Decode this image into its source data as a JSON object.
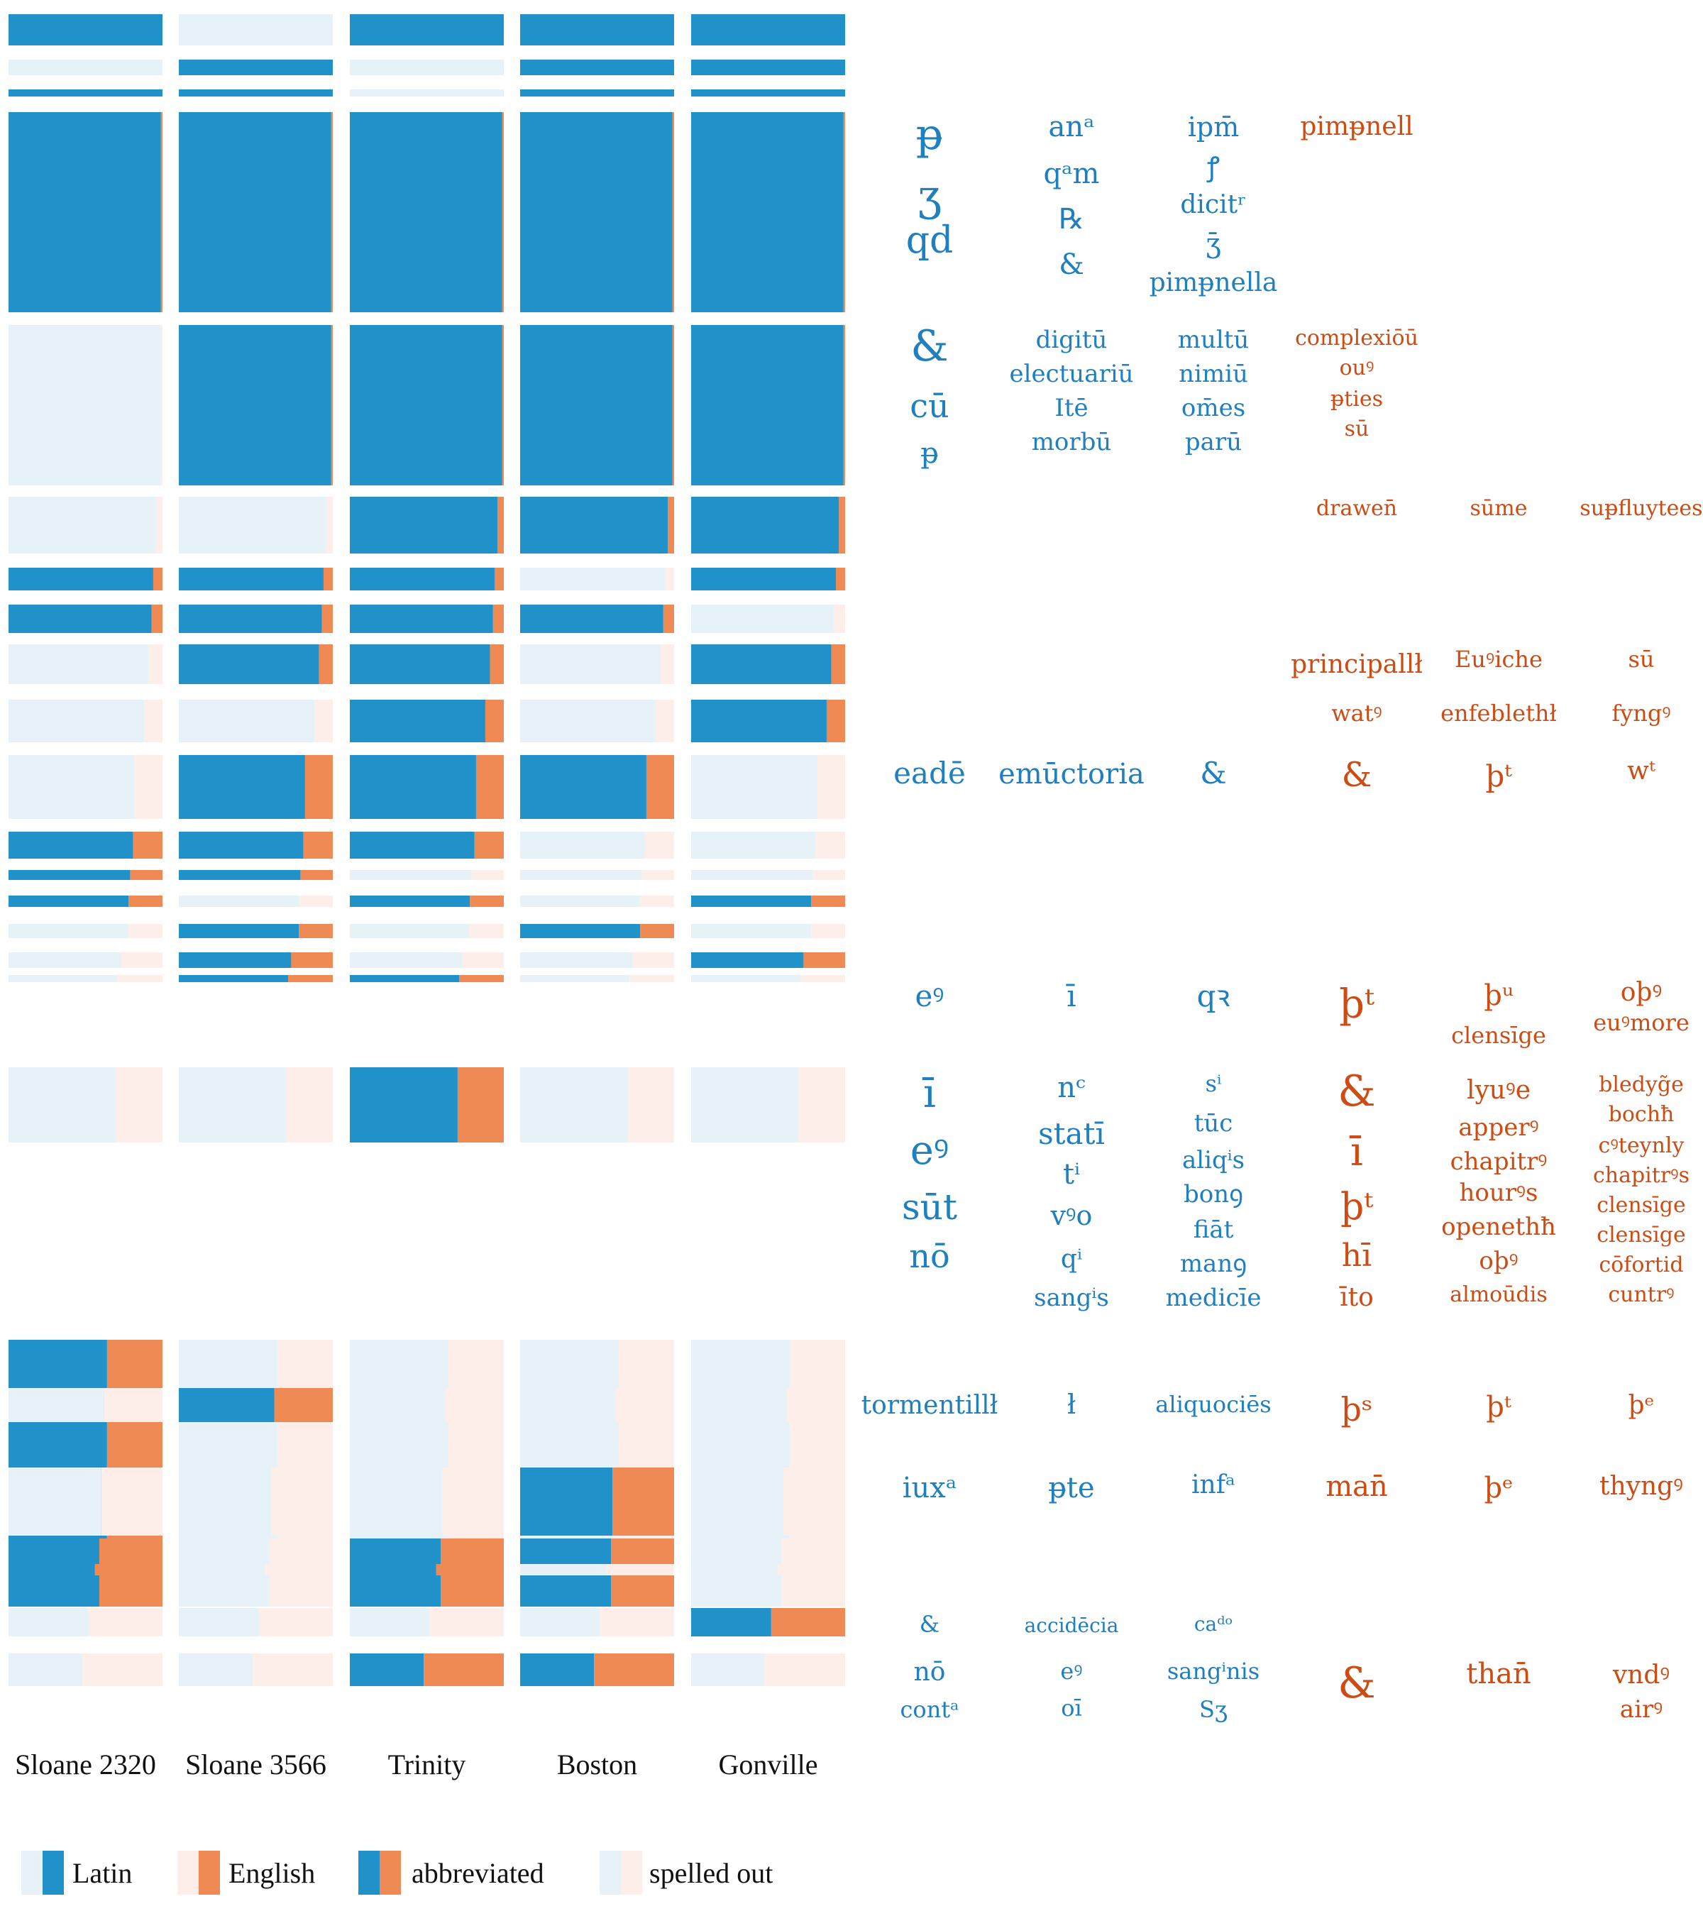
{
  "colors": {
    "latin_abbrev": "#2192c9",
    "english_abbrev": "#f08a54",
    "latin_spelled": "#e6f2f8",
    "english_spelled": "#fdeeea",
    "latin_text": "#1f7fbf",
    "english_text": "#cc4c14"
  },
  "chart_data": {
    "type": "heatmap",
    "columns": [
      "Sloane 2320",
      "Sloane 3566",
      "Trinity",
      "Boston",
      "Gonville"
    ],
    "rows": [
      {
        "latin": 1.0,
        "cells": [
          1,
          0,
          1,
          1,
          1
        ]
      },
      {
        "latin": 1.0,
        "cells": [
          0,
          1,
          0,
          1,
          1
        ]
      },
      {
        "latin": 1.0,
        "cells": [
          1,
          1,
          0,
          1,
          1
        ]
      },
      {
        "latin": 0.99,
        "cells": [
          1,
          1,
          1,
          1,
          1
        ]
      },
      {
        "latin": 0.99,
        "cells": [
          0,
          1,
          1,
          1,
          1
        ]
      },
      {
        "latin": 0.96,
        "cells": [
          0,
          0,
          1,
          1,
          1
        ]
      },
      {
        "latin": 0.94,
        "cells": [
          1,
          1,
          1,
          0,
          1
        ]
      },
      {
        "latin": 0.93,
        "cells": [
          1,
          1,
          1,
          1,
          0
        ]
      },
      {
        "latin": 0.91,
        "cells": [
          0,
          1,
          1,
          0,
          1
        ]
      },
      {
        "latin": 0.88,
        "cells": [
          0,
          0,
          1,
          0,
          1
        ]
      },
      {
        "latin": 0.82,
        "cells": [
          0,
          1,
          1,
          1,
          0
        ]
      },
      {
        "latin": 0.81,
        "cells": [
          1,
          1,
          1,
          0,
          0
        ]
      },
      {
        "latin": 0.79,
        "cells": [
          1,
          1,
          0,
          0,
          0
        ]
      },
      {
        "latin": 0.78,
        "cells": [
          1,
          0,
          1,
          0,
          1
        ]
      },
      {
        "latin": 0.78,
        "cells": [
          0,
          1,
          0,
          1,
          0
        ]
      },
      {
        "latin": 0.73,
        "cells": [
          0,
          1,
          0,
          0,
          1
        ]
      },
      {
        "latin": 0.71,
        "cells": [
          0,
          1,
          1,
          0,
          0
        ]
      },
      {
        "latin": 0.7,
        "cells": [
          0,
          0,
          1,
          0,
          0
        ]
      },
      {
        "latin": 0.64,
        "cells": [
          1,
          0,
          0,
          0,
          0
        ]
      },
      {
        "latin": 0.62,
        "cells": [
          0,
          1,
          0,
          0,
          0
        ]
      },
      {
        "latin": 0.6,
        "cells": [
          0,
          0,
          0,
          1,
          0
        ]
      },
      {
        "latin": 0.59,
        "cells": [
          1,
          0,
          1,
          1,
          0
        ]
      },
      {
        "latin": 0.56,
        "cells": [
          1,
          0,
          1,
          0,
          0
        ]
      },
      {
        "latin": 0.52,
        "cells": [
          0,
          0,
          0,
          0,
          1
        ]
      },
      {
        "latin": 0.48,
        "cells": [
          0,
          0,
          1,
          1,
          0
        ]
      }
    ]
  },
  "words": [
    {
      "lang": "latin",
      "size": 60,
      "text": "p̶"
    },
    {
      "lang": "latin",
      "size": 60,
      "text": "ʒ"
    },
    {
      "lang": "latin",
      "size": 52,
      "text": "qd"
    },
    {
      "lang": "latin",
      "size": 40,
      "text": "anᵃ"
    },
    {
      "lang": "latin",
      "size": 40,
      "text": "qᵃm"
    },
    {
      "lang": "latin",
      "size": 40,
      "text": "℞"
    },
    {
      "lang": "latin",
      "size": 40,
      "text": "&"
    },
    {
      "lang": "latin",
      "size": 38,
      "text": "ipm̄"
    },
    {
      "lang": "latin",
      "size": 38,
      "text": "ꝭ"
    },
    {
      "lang": "latin",
      "size": 36,
      "text": "dicitʳ"
    },
    {
      "lang": "latin",
      "size": 38,
      "text": "ʒ̄"
    },
    {
      "lang": "latin",
      "size": 36,
      "text": "pimp̶nella"
    },
    {
      "lang": "english",
      "size": 36,
      "text": "pimp̶nell"
    },
    {
      "lang": "latin",
      "size": 60,
      "text": "&"
    },
    {
      "lang": "latin",
      "size": 46,
      "text": "cū"
    },
    {
      "lang": "latin",
      "size": 40,
      "text": "p̶"
    },
    {
      "lang": "latin",
      "size": 34,
      "text": "digitū"
    },
    {
      "lang": "latin",
      "size": 34,
      "text": "electuariū"
    },
    {
      "lang": "latin",
      "size": 34,
      "text": "Itē"
    },
    {
      "lang": "latin",
      "size": 34,
      "text": "morbū"
    },
    {
      "lang": "latin",
      "size": 34,
      "text": "multū"
    },
    {
      "lang": "latin",
      "size": 34,
      "text": "nimiū"
    },
    {
      "lang": "latin",
      "size": 34,
      "text": "om̄es"
    },
    {
      "lang": "latin",
      "size": 34,
      "text": "parū"
    },
    {
      "lang": "english",
      "size": 30,
      "text": "complexiōū"
    },
    {
      "lang": "english",
      "size": 30,
      "text": "ouꝰ"
    },
    {
      "lang": "english",
      "size": 30,
      "text": "p̶ties"
    },
    {
      "lang": "english",
      "size": 30,
      "text": "sū"
    },
    {
      "lang": "english",
      "size": 30,
      "text": "drawen̄"
    },
    {
      "lang": "english",
      "size": 30,
      "text": "sūme"
    },
    {
      "lang": "english",
      "size": 30,
      "text": "sup̶fluytees"
    },
    {
      "lang": "english",
      "size": 36,
      "text": "principallł"
    },
    {
      "lang": "english",
      "size": 32,
      "text": "Euꝰiche"
    },
    {
      "lang": "english",
      "size": 32,
      "text": "sū"
    },
    {
      "lang": "english",
      "size": 32,
      "text": "watꝰ"
    },
    {
      "lang": "english",
      "size": 32,
      "text": "enfeblethł"
    },
    {
      "lang": "english",
      "size": 32,
      "text": "fyngꝰ"
    },
    {
      "lang": "latin",
      "size": 42,
      "text": "eadē"
    },
    {
      "lang": "latin",
      "size": 40,
      "text": "emūctoria"
    },
    {
      "lang": "latin",
      "size": 42,
      "text": "&"
    },
    {
      "lang": "english",
      "size": 48,
      "text": "&"
    },
    {
      "lang": "english",
      "size": 42,
      "text": "þᵗ"
    },
    {
      "lang": "english",
      "size": 36,
      "text": "wᵗ"
    },
    {
      "lang": "latin",
      "size": 42,
      "text": "eꝰ"
    },
    {
      "lang": "latin",
      "size": 42,
      "text": "ī"
    },
    {
      "lang": "latin",
      "size": 42,
      "text": "qꝛ"
    },
    {
      "lang": "english",
      "size": 56,
      "text": "þᵗ"
    },
    {
      "lang": "english",
      "size": 40,
      "text": "þᵘ"
    },
    {
      "lang": "english",
      "size": 36,
      "text": "oþꝰ"
    },
    {
      "lang": "english",
      "size": 32,
      "text": "clensīge"
    },
    {
      "lang": "english",
      "size": 32,
      "text": "euꝰmore"
    },
    {
      "lang": "latin",
      "size": 56,
      "text": "ī"
    },
    {
      "lang": "latin",
      "size": 56,
      "text": "eꝰ"
    },
    {
      "lang": "latin",
      "size": 50,
      "text": "sūt"
    },
    {
      "lang": "latin",
      "size": 46,
      "text": "nō"
    },
    {
      "lang": "latin",
      "size": 40,
      "text": "nᶜ"
    },
    {
      "lang": "latin",
      "size": 42,
      "text": "statī"
    },
    {
      "lang": "latin",
      "size": 40,
      "text": "tⁱ"
    },
    {
      "lang": "latin",
      "size": 38,
      "text": "vꝰo"
    },
    {
      "lang": "latin",
      "size": 36,
      "text": "qⁱ"
    },
    {
      "lang": "latin",
      "size": 34,
      "text": "sangⁱs"
    },
    {
      "lang": "latin",
      "size": 32,
      "text": "sⁱ"
    },
    {
      "lang": "latin",
      "size": 34,
      "text": "tūc"
    },
    {
      "lang": "latin",
      "size": 34,
      "text": "aliqⁱs"
    },
    {
      "lang": "latin",
      "size": 34,
      "text": "bonꝯ"
    },
    {
      "lang": "latin",
      "size": 34,
      "text": "fiāt"
    },
    {
      "lang": "latin",
      "size": 34,
      "text": "manꝯ"
    },
    {
      "lang": "latin",
      "size": 34,
      "text": "medicīe"
    },
    {
      "lang": "english",
      "size": 60,
      "text": "&"
    },
    {
      "lang": "english",
      "size": 56,
      "text": "ī"
    },
    {
      "lang": "english",
      "size": 52,
      "text": "þᵗ"
    },
    {
      "lang": "english",
      "size": 44,
      "text": "hī"
    },
    {
      "lang": "english",
      "size": 36,
      "text": "īto"
    },
    {
      "lang": "english",
      "size": 36,
      "text": "lyuꝰe"
    },
    {
      "lang": "english",
      "size": 34,
      "text": "apperꝰ"
    },
    {
      "lang": "english",
      "size": 34,
      "text": "chapitrꝰ"
    },
    {
      "lang": "english",
      "size": 34,
      "text": "hourꝰs"
    },
    {
      "lang": "english",
      "size": 34,
      "text": "openethħ"
    },
    {
      "lang": "english",
      "size": 34,
      "text": "oþꝰ"
    },
    {
      "lang": "english",
      "size": 30,
      "text": "almoūdis"
    },
    {
      "lang": "english",
      "size": 30,
      "text": "bledyg̃e"
    },
    {
      "lang": "english",
      "size": 30,
      "text": "bochħ"
    },
    {
      "lang": "english",
      "size": 30,
      "text": "cꝰteynly"
    },
    {
      "lang": "english",
      "size": 30,
      "text": "chapitrꝰs"
    },
    {
      "lang": "english",
      "size": 30,
      "text": "clensīge"
    },
    {
      "lang": "english",
      "size": 30,
      "text": "clensīge"
    },
    {
      "lang": "english",
      "size": 30,
      "text": "cōfortid"
    },
    {
      "lang": "english",
      "size": 30,
      "text": "cuntrꝰ"
    },
    {
      "lang": "latin",
      "size": 36,
      "text": "tormentillł"
    },
    {
      "lang": "latin",
      "size": 38,
      "text": "ł"
    },
    {
      "lang": "latin",
      "size": 32,
      "text": "aliquociēs"
    },
    {
      "lang": "english",
      "size": 46,
      "text": "þˢ"
    },
    {
      "lang": "english",
      "size": 40,
      "text": "þᵗ"
    },
    {
      "lang": "english",
      "size": 36,
      "text": "þᵉ"
    },
    {
      "lang": "latin",
      "size": 40,
      "text": "iuxᵃ"
    },
    {
      "lang": "latin",
      "size": 40,
      "text": "p̶te"
    },
    {
      "lang": "latin",
      "size": 36,
      "text": "infᵃ"
    },
    {
      "lang": "english",
      "size": 40,
      "text": "man̄"
    },
    {
      "lang": "english",
      "size": 40,
      "text": "þᵉ"
    },
    {
      "lang": "english",
      "size": 36,
      "text": "thyngꝰ"
    },
    {
      "lang": "latin",
      "size": 32,
      "text": "&"
    },
    {
      "lang": "latin",
      "size": 28,
      "text": "accidēcia"
    },
    {
      "lang": "latin",
      "size": 28,
      "text": "caᵈᵒ"
    },
    {
      "lang": "latin",
      "size": 36,
      "text": "nō"
    },
    {
      "lang": "latin",
      "size": 32,
      "text": "contᵃ"
    },
    {
      "lang": "latin",
      "size": 32,
      "text": "eꝰ"
    },
    {
      "lang": "latin",
      "size": 32,
      "text": "oī"
    },
    {
      "lang": "latin",
      "size": 32,
      "text": "sangⁱnis"
    },
    {
      "lang": "latin",
      "size": 32,
      "text": "Sʒ"
    },
    {
      "lang": "english",
      "size": 60,
      "text": "&"
    },
    {
      "lang": "english",
      "size": 40,
      "text": "than̄"
    },
    {
      "lang": "english",
      "size": 36,
      "text": "vndꝰ"
    },
    {
      "lang": "english",
      "size": 34,
      "text": "airꝰ"
    }
  ],
  "legend": [
    {
      "key": "latin",
      "label": "Latin"
    },
    {
      "key": "english",
      "label": "English"
    },
    {
      "key": "abbreviated",
      "label": "abbreviated"
    },
    {
      "key": "spelled",
      "label": "spelled out"
    }
  ]
}
